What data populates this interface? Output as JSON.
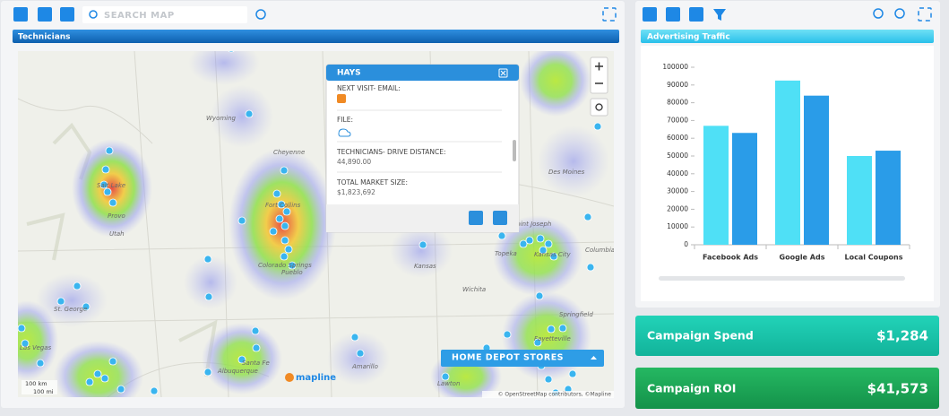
{
  "toolbar": {
    "search_placeholder": "SEARCH MAP"
  },
  "map_panel": {
    "title": "Technicians",
    "labels": [
      "Wyoming",
      "Cheyenne",
      "Salt Lake",
      "Provo",
      "Utah",
      "Fort Collins",
      "Colorado Springs",
      "Pueblo",
      "St. George",
      "Las Vegas",
      "Albuquerque",
      "Santa Fe",
      "Amarillo",
      "Kansas",
      "Wichita",
      "Topeka",
      "Kansas City",
      "Saint Joseph",
      "Des Moines",
      "Columbia",
      "Springfield",
      "Fayetteville",
      "Lawton"
    ],
    "scale_km": "100 km",
    "scale_mi": "100 mi",
    "attribution": "© OpenStreetMap contributors, ©Mapline",
    "logo": "mapline",
    "layer_button": "HOME DEPOT STORES"
  },
  "popup": {
    "title": "HAYS",
    "fields": [
      {
        "label": "NEXT VISIT- EMAIL:"
      },
      {
        "label": "FILE:"
      },
      {
        "label": "TECHNICIANS- DRIVE DISTANCE:",
        "value": "44,890.00"
      },
      {
        "label": "TOTAL MARKET SIZE:",
        "value": "$1,823,692"
      }
    ]
  },
  "chart_data": {
    "type": "bar",
    "title": "Advertising Traffic",
    "categories": [
      "Facebook Ads",
      "Google Ads",
      "Local Coupons"
    ],
    "series": [
      {
        "color": "#4fe0f6",
        "values": [
          67000,
          92500,
          50000
        ]
      },
      {
        "color": "#2a9ce8",
        "values": [
          63000,
          84000,
          53000
        ]
      }
    ],
    "ylim": [
      0,
      100000
    ],
    "yticks": [
      0,
      10000,
      20000,
      30000,
      40000,
      50000,
      60000,
      70000,
      80000,
      90000,
      100000
    ],
    "grid": false
  },
  "kpis": [
    {
      "label": "Campaign Spend",
      "value": "$1,284"
    },
    {
      "label": "Campaign ROI",
      "value": "$41,573"
    }
  ]
}
